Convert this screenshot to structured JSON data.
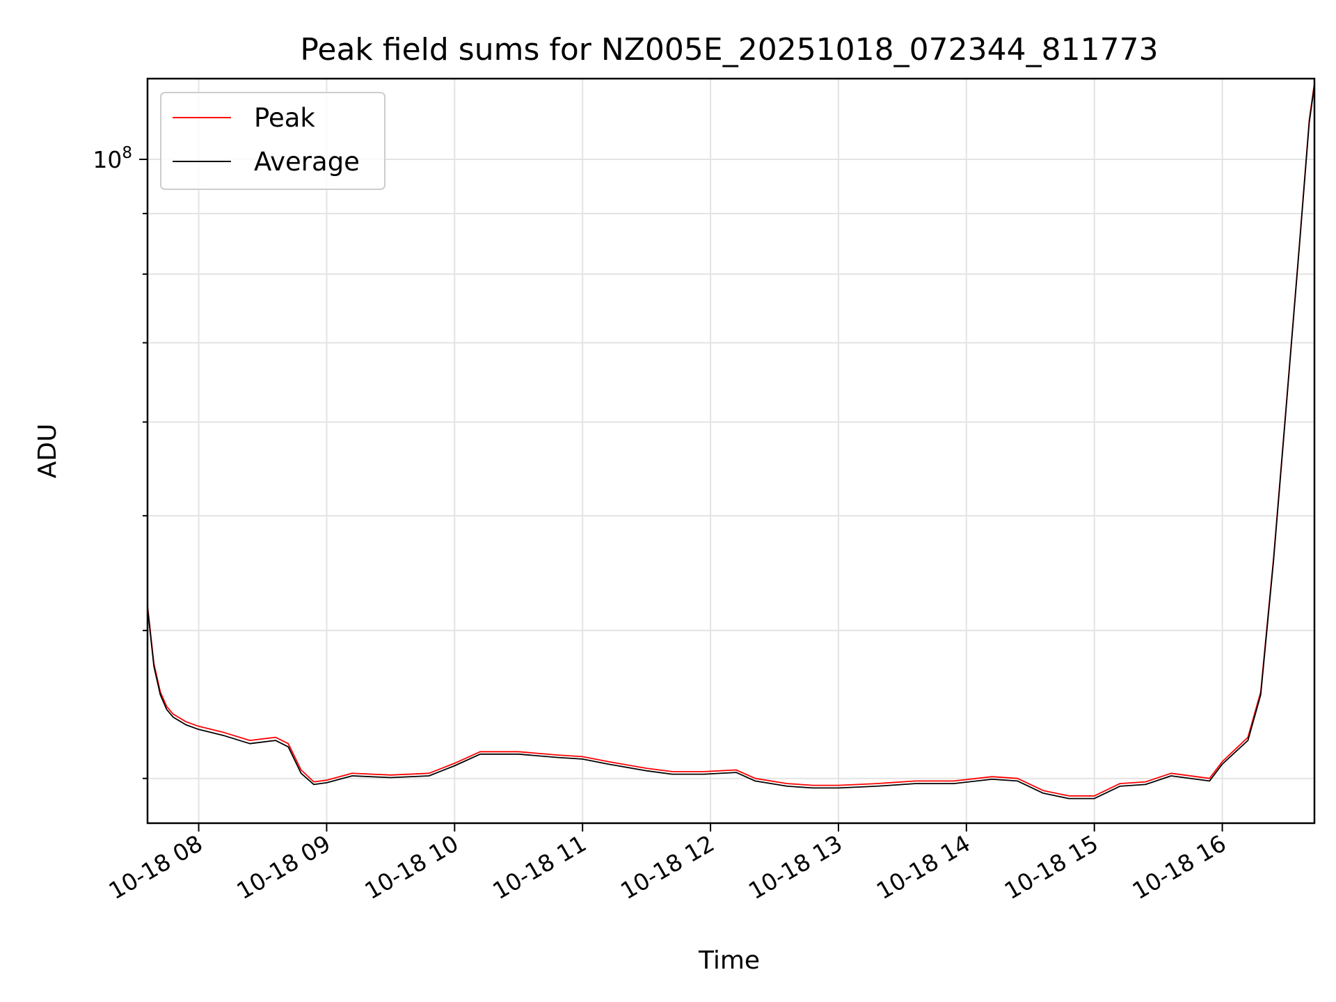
{
  "chart_data": {
    "type": "line",
    "title": "Peak field sums for NZ005E_20251018_072344_811773",
    "xlabel": "Time",
    "ylabel": "ADU",
    "yscale": "log",
    "ylim": [
      27500000,
      117000000
    ],
    "xlim_hours": [
      7.6,
      16.72
    ],
    "x_ticks": [
      {
        "value": 8,
        "label": "10-18 08"
      },
      {
        "value": 9,
        "label": "10-18 09"
      },
      {
        "value": 10,
        "label": "10-18 10"
      },
      {
        "value": 11,
        "label": "10-18 11"
      },
      {
        "value": 12,
        "label": "10-18 12"
      },
      {
        "value": 13,
        "label": "10-18 13"
      },
      {
        "value": 14,
        "label": "10-18 14"
      },
      {
        "value": 15,
        "label": "10-18 15"
      },
      {
        "value": 16,
        "label": "10-18 16"
      }
    ],
    "y_major_ticks": [
      {
        "value": 100000000,
        "base": "10",
        "exp": "8"
      }
    ],
    "y_minor_ticks": [
      30000000,
      40000000,
      50000000,
      60000000,
      70000000,
      80000000,
      90000000
    ],
    "grid": true,
    "legend_position": "top-left",
    "series": [
      {
        "name": "Peak",
        "color": "#ff0000",
        "x_hours": [
          7.6,
          7.65,
          7.7,
          7.75,
          7.8,
          7.9,
          8.0,
          8.2,
          8.4,
          8.6,
          8.7,
          8.8,
          8.9,
          9.0,
          9.2,
          9.5,
          9.8,
          10.0,
          10.2,
          10.5,
          10.8,
          11.0,
          11.2,
          11.5,
          11.7,
          11.95,
          12.2,
          12.35,
          12.6,
          12.8,
          13.0,
          13.3,
          13.6,
          13.9,
          14.2,
          14.4,
          14.6,
          14.8,
          15.0,
          15.2,
          15.4,
          15.6,
          15.9,
          16.0,
          16.2,
          16.3,
          16.4,
          16.5,
          16.6,
          16.68,
          16.72
        ],
        "values": [
          42000000,
          37500000,
          35500000,
          34500000,
          34000000,
          33500000,
          33200000,
          32800000,
          32300000,
          32500000,
          32100000,
          30500000,
          29800000,
          29900000,
          30300000,
          30200000,
          30300000,
          30900000,
          31600000,
          31600000,
          31400000,
          31300000,
          31000000,
          30600000,
          30400000,
          30400000,
          30500000,
          30000000,
          29700000,
          29600000,
          29600000,
          29700000,
          29850000,
          29850000,
          30100000,
          30000000,
          29300000,
          29000000,
          29000000,
          29700000,
          29800000,
          30300000,
          30000000,
          31000000,
          32500000,
          35500000,
          46000000,
          62000000,
          84000000,
          108000000,
          116000000
        ]
      },
      {
        "name": "Average",
        "color": "#000000",
        "x_hours": [
          7.6,
          7.65,
          7.7,
          7.75,
          7.8,
          7.9,
          8.0,
          8.2,
          8.4,
          8.6,
          8.7,
          8.8,
          8.9,
          9.0,
          9.2,
          9.5,
          9.8,
          10.0,
          10.2,
          10.5,
          10.8,
          11.0,
          11.2,
          11.5,
          11.7,
          11.95,
          12.2,
          12.35,
          12.6,
          12.8,
          13.0,
          13.3,
          13.6,
          13.9,
          14.2,
          14.4,
          14.6,
          14.8,
          15.0,
          15.2,
          15.4,
          15.6,
          15.9,
          16.0,
          16.2,
          16.3,
          16.4,
          16.5,
          16.6,
          16.68,
          16.72
        ],
        "values": [
          41800000,
          37300000,
          35300000,
          34300000,
          33800000,
          33300000,
          33000000,
          32600000,
          32100000,
          32300000,
          31900000,
          30300000,
          29650000,
          29750000,
          30150000,
          30050000,
          30150000,
          30750000,
          31450000,
          31450000,
          31250000,
          31150000,
          30850000,
          30450000,
          30250000,
          30250000,
          30350000,
          29850000,
          29550000,
          29450000,
          29450000,
          29550000,
          29700000,
          29700000,
          29950000,
          29850000,
          29150000,
          28850000,
          28850000,
          29550000,
          29650000,
          30150000,
          29850000,
          30850000,
          32300000,
          35300000,
          45800000,
          61800000,
          83800000,
          107500000,
          115500000
        ]
      }
    ]
  }
}
